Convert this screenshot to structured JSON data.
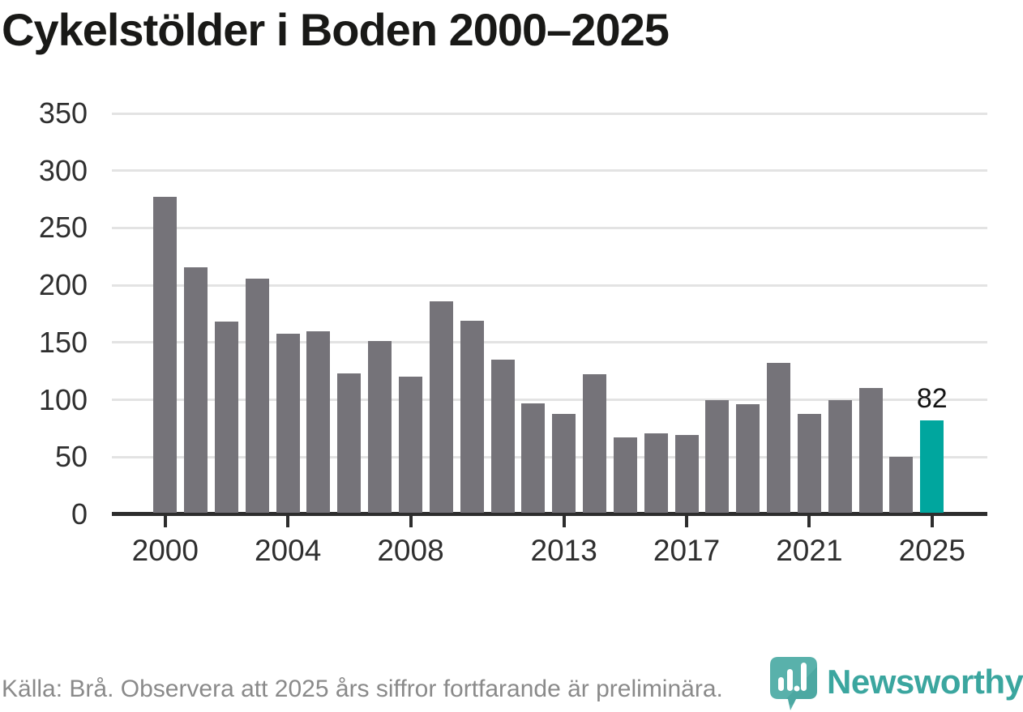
{
  "title": "Cykelstölder i Boden 2000–2025",
  "source_note": "Källa: Brå. Observera att 2025 års siffror fortfarande är preliminära.",
  "brand": {
    "wordmark": "Newsworthy"
  },
  "colors": {
    "bar": "#757379",
    "highlight": "#00a69e",
    "axis": "#2d2d2d",
    "grid": "#e3e3e3",
    "title_text": "#191917",
    "tick_text": "#2f2f2f",
    "value_text": "#141414",
    "source_text": "#8a8a8a",
    "brand_teal": "#3ba69f",
    "logo_teal": "#48a9a2",
    "logo_shadow": "#2d9790"
  },
  "chart_data": {
    "type": "bar",
    "title": "Cykelstölder i Boden 2000–2025",
    "xlabel": "",
    "ylabel": "",
    "categories": [
      2000,
      2001,
      2002,
      2003,
      2004,
      2005,
      2006,
      2007,
      2008,
      2009,
      2010,
      2011,
      2012,
      2013,
      2014,
      2015,
      2016,
      2017,
      2018,
      2019,
      2020,
      2021,
      2022,
      2023,
      2024,
      2025
    ],
    "values": [
      277,
      216,
      168,
      206,
      158,
      160,
      123,
      151,
      120,
      186,
      169,
      135,
      97,
      88,
      122,
      67,
      71,
      69,
      100,
      96,
      132,
      88,
      100,
      110,
      50,
      82
    ],
    "highlight_year": 2025,
    "highlight_value_label": "82",
    "x_tick_labels": [
      "2000",
      "2004",
      "2008",
      "2013",
      "2017",
      "2021",
      "2025"
    ],
    "y_ticks": [
      0,
      50,
      100,
      150,
      200,
      250,
      300,
      350
    ],
    "ylim": [
      0,
      350
    ],
    "grid": true,
    "legend": "none",
    "bar_colors": {
      "default": "#757379",
      "2025": "#00a69e"
    }
  }
}
